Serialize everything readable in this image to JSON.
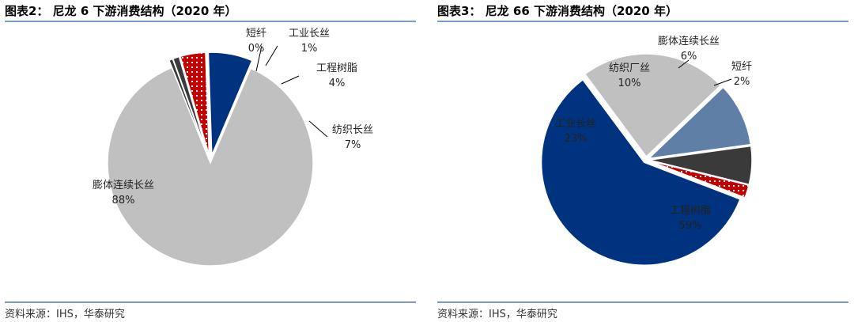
{
  "chart_data": [
    {
      "type": "pie",
      "title": "图表2： 尼龙 6 下游消费结构（2020 年）",
      "source": "资料来源：IHS，华泰研究",
      "slices": [
        {
          "label": "短纤",
          "value": 0,
          "value_label": "0%",
          "color": "#3a3a3a",
          "pattern": "solid"
        },
        {
          "label": "工业长丝",
          "value": 1,
          "value_label": "1%",
          "color": "#3a3a3a",
          "pattern": "solid"
        },
        {
          "label": "工程树脂",
          "value": 4,
          "value_label": "4%",
          "color": "#c00000",
          "pattern": "dots"
        },
        {
          "label": "纺织长丝",
          "value": 7,
          "value_label": "7%",
          "color": "#00337f",
          "pattern": "solid"
        },
        {
          "label": "膨体连续长丝",
          "value": 88,
          "value_label": "88%",
          "color": "#c0c0c0",
          "pattern": "solid"
        }
      ]
    },
    {
      "type": "pie",
      "title": "图表3： 尼龙 66 下游消费结构（2020 年）",
      "source": "资料来源：IHS，华泰研究",
      "slices": [
        {
          "label": "工程树脂",
          "value": 59,
          "value_label": "59%",
          "color": "#00337f",
          "pattern": "solid"
        },
        {
          "label": "工业长丝",
          "value": 23,
          "value_label": "23%",
          "color": "#c0c0c0",
          "pattern": "solid"
        },
        {
          "label": "纺织厂丝",
          "value": 10,
          "value_label": "10%",
          "color": "#5f7fa6",
          "pattern": "solid"
        },
        {
          "label": "膨体连续长丝",
          "value": 6,
          "value_label": "6%",
          "color": "#3a3a3a",
          "pattern": "solid"
        },
        {
          "label": "短纤",
          "value": 2,
          "value_label": "2%",
          "color": "#c00000",
          "pattern": "dots"
        }
      ]
    }
  ]
}
